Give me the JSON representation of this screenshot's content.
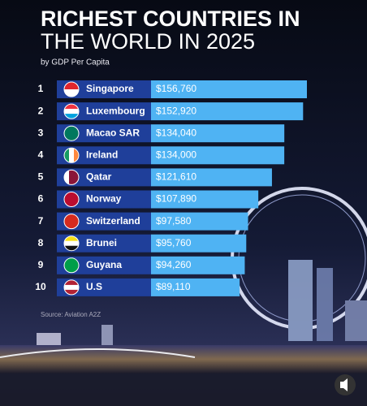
{
  "chart_data": {
    "type": "bar",
    "orientation": "horizontal",
    "title_line1": "RICHEST COUNTRIES IN",
    "title_line2": "THE WORLD IN 2025",
    "subtitle": "by GDP Per Capita",
    "ranks": [
      "1",
      "2",
      "3",
      "4",
      "5",
      "6",
      "7",
      "8",
      "9",
      "10"
    ],
    "categories": [
      "Singapore",
      "Luxembourg",
      "Macao SAR",
      "Ireland",
      "Qatar",
      "Norway",
      "Switzerland",
      "Brunei",
      "Guyana",
      "U.S"
    ],
    "values": [
      156760,
      152920,
      134040,
      134000,
      121610,
      107890,
      97580,
      95760,
      94260,
      89110
    ],
    "value_labels": [
      "$156,760",
      "$152,920",
      "$134,040",
      "$134,000",
      "$121,610",
      "$107,890",
      "$97,580",
      "$95,760",
      "$94,260",
      "$89,110"
    ],
    "color": "#4fb3f3",
    "label_color": "#1f3f9a",
    "source": "Source: Aviation A2Z"
  }
}
